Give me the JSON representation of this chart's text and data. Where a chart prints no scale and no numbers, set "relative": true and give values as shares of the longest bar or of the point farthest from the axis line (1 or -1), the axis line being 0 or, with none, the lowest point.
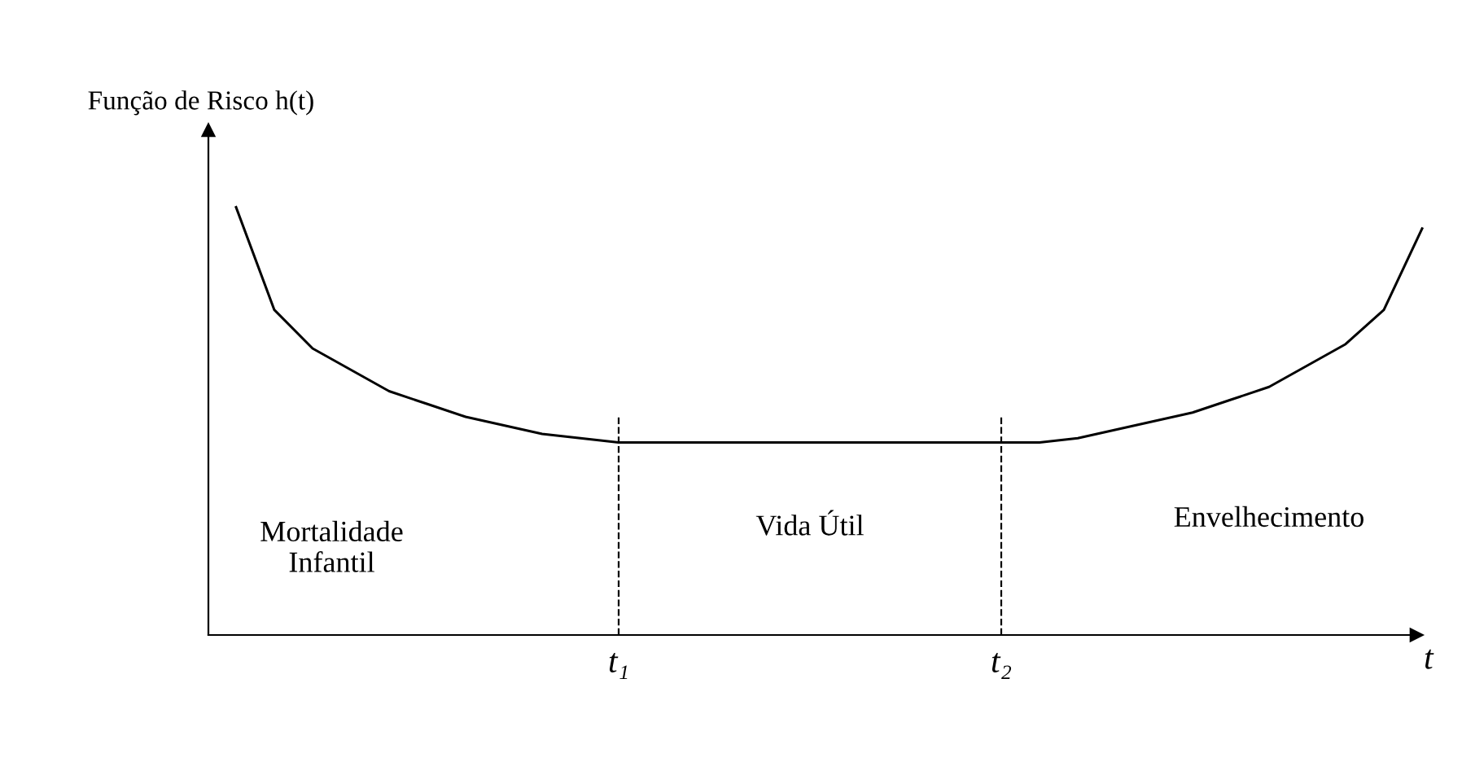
{
  "chart_data": {
    "type": "line",
    "relative": true,
    "ylabel": "Função de Risco h(t)",
    "xlabel": "t",
    "categories": [
      null,
      null,
      null,
      null,
      null,
      null,
      null,
      null,
      null,
      null,
      "t₁",
      null,
      null,
      null,
      null,
      null,
      null,
      null,
      null,
      null,
      "t₂",
      null,
      null,
      null,
      null,
      null,
      null,
      null,
      null,
      null,
      null,
      null
    ],
    "series": [
      {
        "color": "#000000",
        "values": [
          1.0,
          0.76,
          0.67,
          0.62,
          0.57,
          0.54,
          0.51,
          0.49,
          0.47,
          0.46,
          0.45,
          0.45,
          0.45,
          0.45,
          0.45,
          0.45,
          0.45,
          0.45,
          0.45,
          0.45,
          0.45,
          0.45,
          0.46,
          0.48,
          0.5,
          0.52,
          0.55,
          0.58,
          0.63,
          0.68,
          0.76,
          0.95
        ]
      }
    ],
    "ref_lines": [
      {
        "axis": "x",
        "value": "t₁",
        "color": "#000000",
        "line_style": "dashed"
      },
      {
        "axis": "x",
        "value": "t₂",
        "color": "#000000",
        "line_style": "dashed"
      }
    ],
    "annotations": [
      "Mortalidade\nInfantil",
      "Vida Útil",
      "Envelhecimento"
    ],
    "grid": false,
    "legend": false,
    "marker": "none",
    "line_style": "solid"
  }
}
